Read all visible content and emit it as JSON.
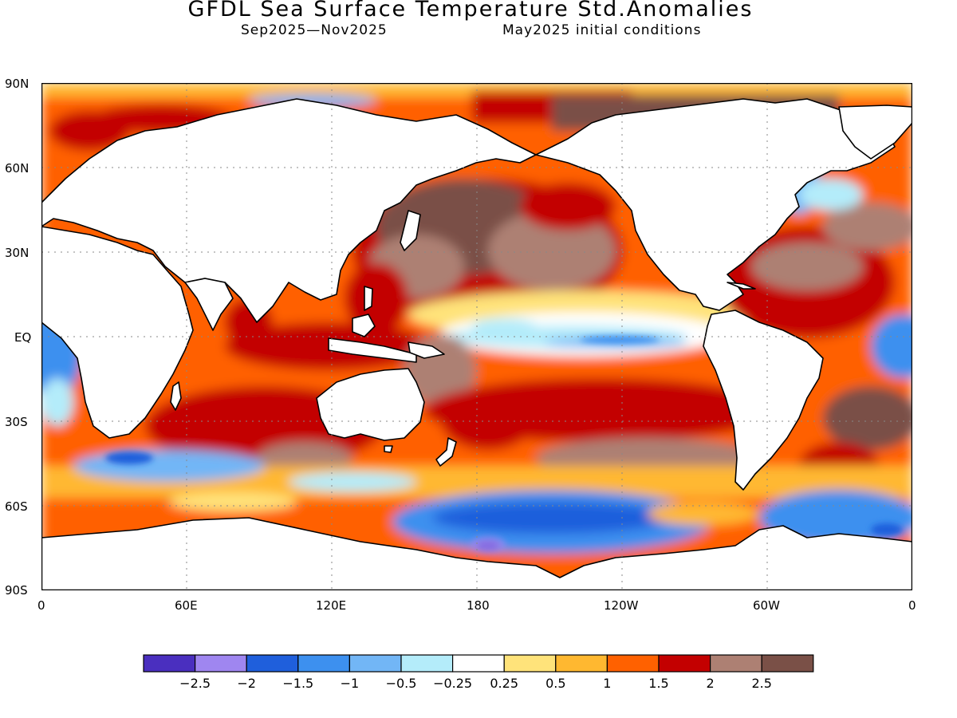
{
  "header": {
    "title": "GFDL Sea Surface Temperature Std.Anomalies",
    "period": "Sep2025—Nov2025",
    "init": "May2025 initial conditions"
  },
  "map": {
    "y_ticks": [
      "90N",
      "60N",
      "30N",
      "EQ",
      "30S",
      "60S",
      "90S"
    ],
    "x_ticks": [
      "0",
      "60E",
      "120E",
      "180",
      "120W",
      "60W",
      "0"
    ],
    "land_color": "#ffffff",
    "grid": "dotted"
  },
  "colorbar": {
    "colors": [
      "#4a2fbf",
      "#9f86f0",
      "#1f5fdc",
      "#3d90ef",
      "#72b6f6",
      "#b4ecfa",
      "#ffffff",
      "#ffe37a",
      "#ffb830",
      "#ff6100",
      "#c30000",
      "#ad8073",
      "#7a5047"
    ],
    "labels": [
      "−2.5",
      "−2",
      "−1.5",
      "−1",
      "−0.5",
      "−0.25",
      "0.25",
      "0.5",
      "1",
      "1.5",
      "2",
      "2.5"
    ]
  }
}
